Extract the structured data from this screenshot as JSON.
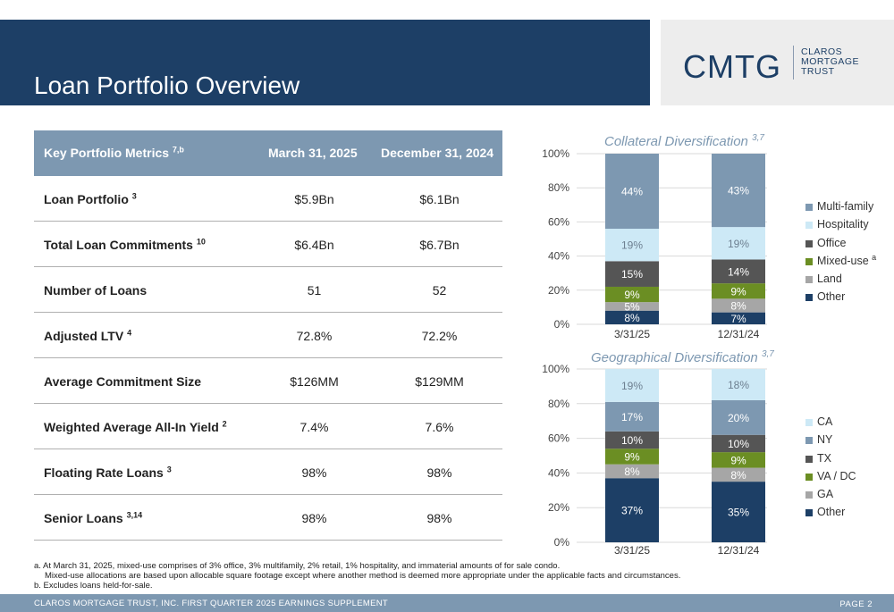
{
  "header": {
    "title": "Loan Portfolio Overview",
    "logo_mark": "CMTG",
    "logo_lines": [
      "CLAROS",
      "MORTGAGE",
      "TRUST"
    ]
  },
  "metrics": {
    "headers": [
      {
        "label": "Key Portfolio Metrics",
        "sup": "7,b"
      },
      {
        "label": "March 31, 2025",
        "sup": ""
      },
      {
        "label": "December 31, 2024",
        "sup": ""
      }
    ],
    "rows": [
      {
        "label": "Loan Portfolio",
        "sup": "3",
        "mar": "$5.9Bn",
        "dec": "$6.1Bn"
      },
      {
        "label": "Total Loan Commitments",
        "sup": "10",
        "mar": "$6.4Bn",
        "dec": "$6.7Bn"
      },
      {
        "label": "Number of Loans",
        "sup": "",
        "mar": "51",
        "dec": "52"
      },
      {
        "label": "Adjusted LTV",
        "sup": "4",
        "mar": "72.8%",
        "dec": "72.2%"
      },
      {
        "label": "Average Commitment Size",
        "sup": "",
        "mar": "$126MM",
        "dec": "$129MM"
      },
      {
        "label": "Weighted Average All-In Yield",
        "sup": "2",
        "mar": "7.4%",
        "dec": "7.6%"
      },
      {
        "label": "Floating Rate Loans",
        "sup": "3",
        "mar": "98%",
        "dec": "98%"
      },
      {
        "label": "Senior Loans",
        "sup": "3,14",
        "mar": "98%",
        "dec": "98%"
      }
    ]
  },
  "chart_data": [
    {
      "type": "bar",
      "stacked": true,
      "title": "Collateral Diversification",
      "title_sup": "3,7",
      "categories": [
        "3/31/25",
        "12/31/24"
      ],
      "yticks": [
        "0%",
        "20%",
        "40%",
        "60%",
        "80%",
        "100%"
      ],
      "ylim": [
        0,
        100
      ],
      "legend_position": "right",
      "series": [
        {
          "name": "Other",
          "sup": "",
          "color": "#1d3f66",
          "label_color": "#ffffff",
          "values": [
            8,
            7
          ]
        },
        {
          "name": "Land",
          "sup": "",
          "color": "#a6a6a6",
          "label_color": "#ffffff",
          "values": [
            5,
            8
          ]
        },
        {
          "name": "Mixed-use",
          "sup": "a",
          "color": "#6b8e23",
          "label_color": "#ffffff",
          "values": [
            9,
            9
          ]
        },
        {
          "name": "Office",
          "sup": "",
          "color": "#555555",
          "label_color": "#ffffff",
          "values": [
            15,
            14
          ]
        },
        {
          "name": "Hospitality",
          "sup": "",
          "color": "#cde9f6",
          "label_color": "#6d7f90",
          "values": [
            19,
            19
          ]
        },
        {
          "name": "Multi-family",
          "sup": "",
          "color": "#7d98b1",
          "label_color": "#ffffff",
          "values": [
            44,
            43
          ]
        }
      ]
    },
    {
      "type": "bar",
      "stacked": true,
      "title": "Geographical Diversification",
      "title_sup": "3,7",
      "categories": [
        "3/31/25",
        "12/31/24"
      ],
      "yticks": [
        "0%",
        "20%",
        "40%",
        "60%",
        "80%",
        "100%"
      ],
      "ylim": [
        0,
        100
      ],
      "legend_position": "right",
      "series": [
        {
          "name": "Other",
          "sup": "",
          "color": "#1d3f66",
          "label_color": "#ffffff",
          "values": [
            37,
            35
          ]
        },
        {
          "name": "GA",
          "sup": "",
          "color": "#a6a6a6",
          "label_color": "#ffffff",
          "values": [
            8,
            8
          ]
        },
        {
          "name": "VA / DC",
          "sup": "",
          "color": "#6b8e23",
          "label_color": "#ffffff",
          "values": [
            9,
            9
          ]
        },
        {
          "name": "TX",
          "sup": "",
          "color": "#555555",
          "label_color": "#ffffff",
          "values": [
            10,
            10
          ]
        },
        {
          "name": "NY",
          "sup": "",
          "color": "#7d98b1",
          "label_color": "#ffffff",
          "values": [
            17,
            20
          ]
        },
        {
          "name": "CA",
          "sup": "",
          "color": "#cde9f6",
          "label_color": "#6d7f90",
          "values": [
            19,
            18
          ]
        }
      ]
    }
  ],
  "footnotes": [
    "a. At March 31, 2025, mixed-use comprises of 3% office, 3% multifamily, 2% retail, 1% hospitality, and immaterial amounts of for sale condo.",
    "Mixed-use allocations are based upon allocable square footage except where another method is deemed more appropriate under the applicable facts and circumstances.",
    "b. Excludes loans held-for-sale."
  ],
  "footer": {
    "left": "CLAROS MORTGAGE TRUST, INC. FIRST QUARTER 2025 EARNINGS SUPPLEMENT",
    "right": "PAGE 2"
  }
}
